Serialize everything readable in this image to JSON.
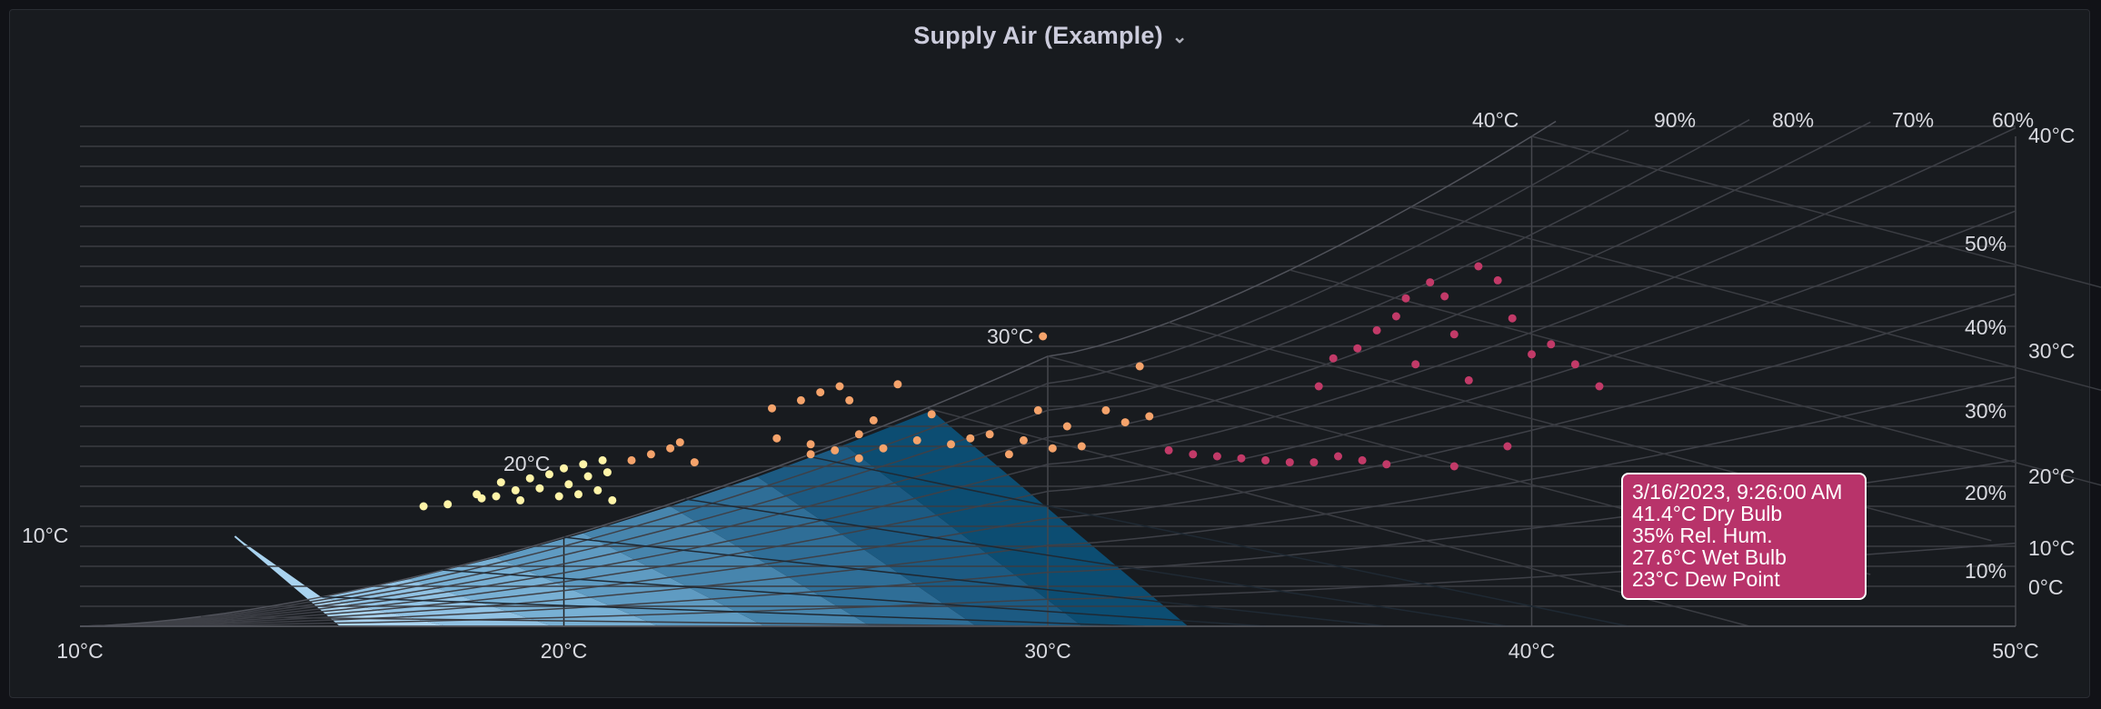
{
  "panel": {
    "title": "Supply Air (Example)",
    "chevron_icon": "chevron-down-icon"
  },
  "chart_data": {
    "type": "scatter",
    "title": "Supply Air (Example)",
    "xlabel": "",
    "ylabel": "",
    "xlim": [
      10,
      50
    ],
    "x_tick_labels": [
      "10°C",
      "20°C",
      "30°C",
      "40°C",
      "50°C"
    ],
    "y_tick_labels_right": [
      "0°C",
      "10°C",
      "20°C",
      "30°C",
      "40°C"
    ],
    "rh_labels": [
      "10%",
      "20%",
      "30%",
      "40%",
      "50%",
      "60%",
      "70%",
      "80%",
      "90%"
    ],
    "wet_bulb_labels": [
      "10°C",
      "20°C",
      "30°C",
      "40°C"
    ],
    "colors": {
      "comfort_zone": [
        "#a9d3ef",
        "#91c2e3",
        "#78b0d4",
        "#5f9bc2",
        "#4785ad",
        "#2f6e97",
        "#1c5a82",
        "#0c4d72"
      ],
      "points_low": "#fff4a8",
      "points_mid": "#f5a36b",
      "points_high": "#c23a68",
      "tooltip_bg": "#b8336a"
    },
    "tooltip": {
      "line1": "3/16/2023, 9:26:00 AM",
      "line2": "41.4°C Dry Bulb",
      "line3": "35% Rel. Hum.",
      "line4": "27.6°C Wet Bulb",
      "line5": "23°C Dew Point"
    },
    "series": [
      {
        "points": [
          [
            17.1,
            6.0
          ],
          [
            17.6,
            6.1
          ],
          [
            18.2,
            6.6
          ],
          [
            18.3,
            6.4
          ],
          [
            18.6,
            6.5
          ],
          [
            18.7,
            7.2
          ],
          [
            19.0,
            6.8
          ],
          [
            19.1,
            6.3
          ],
          [
            19.3,
            7.4
          ],
          [
            19.5,
            6.9
          ],
          [
            19.7,
            7.6
          ],
          [
            19.9,
            6.5
          ],
          [
            20.0,
            7.9
          ],
          [
            20.1,
            7.1
          ],
          [
            20.3,
            6.6
          ],
          [
            20.4,
            8.1
          ],
          [
            20.5,
            7.5
          ],
          [
            20.7,
            6.8
          ],
          [
            20.8,
            8.3
          ],
          [
            20.9,
            7.7
          ],
          [
            21.0,
            6.3
          ]
        ]
      },
      {
        "points": [
          [
            21.4,
            8.3
          ],
          [
            21.8,
            8.6
          ],
          [
            22.2,
            8.9
          ],
          [
            22.4,
            9.2
          ],
          [
            22.7,
            8.2
          ],
          [
            24.3,
            10.9
          ],
          [
            24.4,
            9.4
          ],
          [
            24.9,
            11.3
          ],
          [
            25.1,
            9.1
          ],
          [
            25.3,
            11.7
          ],
          [
            25.7,
            12.0
          ],
          [
            25.9,
            11.3
          ],
          [
            26.1,
            9.6
          ],
          [
            26.4,
            10.3
          ],
          [
            26.9,
            12.1
          ],
          [
            27.3,
            9.3
          ],
          [
            27.6,
            10.6
          ],
          [
            28.0,
            9.1
          ],
          [
            28.4,
            9.4
          ],
          [
            28.8,
            9.6
          ],
          [
            29.2,
            8.6
          ],
          [
            29.5,
            9.3
          ],
          [
            29.8,
            10.8
          ],
          [
            30.1,
            8.9
          ],
          [
            30.4,
            10.0
          ],
          [
            30.7,
            9.0
          ],
          [
            31.2,
            10.8
          ],
          [
            31.6,
            10.2
          ],
          [
            32.1,
            10.5
          ],
          [
            31.9,
            13.0
          ],
          [
            29.9,
            14.5
          ],
          [
            25.1,
            8.6
          ],
          [
            25.6,
            8.8
          ],
          [
            26.1,
            8.4
          ],
          [
            26.6,
            8.9
          ]
        ]
      },
      {
        "points": [
          [
            32.5,
            8.8
          ],
          [
            33.0,
            8.6
          ],
          [
            33.5,
            8.5
          ],
          [
            34.0,
            8.4
          ],
          [
            34.5,
            8.3
          ],
          [
            35.0,
            8.2
          ],
          [
            35.5,
            8.2
          ],
          [
            36.0,
            8.5
          ],
          [
            36.5,
            8.3
          ],
          [
            37.0,
            8.1
          ],
          [
            35.6,
            12.0
          ],
          [
            35.9,
            13.4
          ],
          [
            36.4,
            13.9
          ],
          [
            36.8,
            14.8
          ],
          [
            37.2,
            15.5
          ],
          [
            37.4,
            16.4
          ],
          [
            37.6,
            13.1
          ],
          [
            37.9,
            17.2
          ],
          [
            38.2,
            16.5
          ],
          [
            38.4,
            14.6
          ],
          [
            38.7,
            12.3
          ],
          [
            38.9,
            18.0
          ],
          [
            39.3,
            17.3
          ],
          [
            39.6,
            15.4
          ],
          [
            40.0,
            13.6
          ],
          [
            40.4,
            14.1
          ],
          [
            40.9,
            13.1
          ],
          [
            41.4,
            12.0
          ],
          [
            39.5,
            9.0
          ],
          [
            38.4,
            8.0
          ]
        ]
      }
    ]
  }
}
